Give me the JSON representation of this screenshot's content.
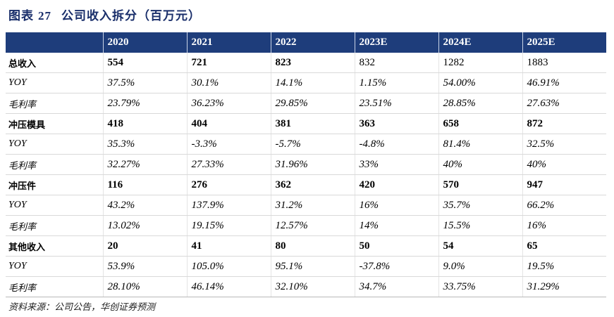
{
  "title": {
    "label": "图表",
    "number": "27",
    "text": "公司收入拆分（百万元）"
  },
  "columns": [
    "",
    "2020",
    "2021",
    "2022",
    "2023E",
    "2024E",
    "2025E"
  ],
  "rows": [
    {
      "label": "总收入",
      "values": [
        "554",
        "721",
        "823",
        "832",
        "1282",
        "1883"
      ]
    },
    {
      "label": "YOY",
      "values": [
        "37.5%",
        "30.1%",
        "14.1%",
        "1.15%",
        "54.00%",
        "46.91%"
      ]
    },
    {
      "label": "毛利率",
      "values": [
        "23.79%",
        "36.23%",
        "29.85%",
        "23.51%",
        "28.85%",
        "27.63%"
      ]
    },
    {
      "label": "冲压模具",
      "values": [
        "418",
        "404",
        "381",
        "363",
        "658",
        "872"
      ]
    },
    {
      "label": "YOY",
      "values": [
        "35.3%",
        "-3.3%",
        "-5.7%",
        "-4.8%",
        "81.4%",
        "32.5%"
      ]
    },
    {
      "label": "毛利率",
      "values": [
        "32.27%",
        "27.33%",
        "31.96%",
        "33%",
        "40%",
        "40%"
      ]
    },
    {
      "label": "冲压件",
      "values": [
        "116",
        "276",
        "362",
        "420",
        "570",
        "947"
      ]
    },
    {
      "label": "YOY",
      "values": [
        "43.2%",
        "137.9%",
        "31.2%",
        "16%",
        "35.7%",
        "66.2%"
      ]
    },
    {
      "label": "毛利率",
      "values": [
        "13.02%",
        "19.15%",
        "12.57%",
        "14%",
        "15.5%",
        "16%"
      ]
    },
    {
      "label": "其他收入",
      "values": [
        "20",
        "41",
        "80",
        "50",
        "54",
        "65"
      ]
    },
    {
      "label": "YOY",
      "values": [
        "53.9%",
        "105.0%",
        "95.1%",
        "-37.8%",
        "9.0%",
        "19.5%"
      ]
    },
    {
      "label": "毛利率",
      "values": [
        "28.10%",
        "46.14%",
        "32.10%",
        "34.7%",
        "33.75%",
        "31.29%"
      ]
    }
  ],
  "source": "资料来源：公司公告，华创证券预测",
  "colors": {
    "header_bg": "#1e3d7b",
    "title": "#1a2f6b"
  }
}
